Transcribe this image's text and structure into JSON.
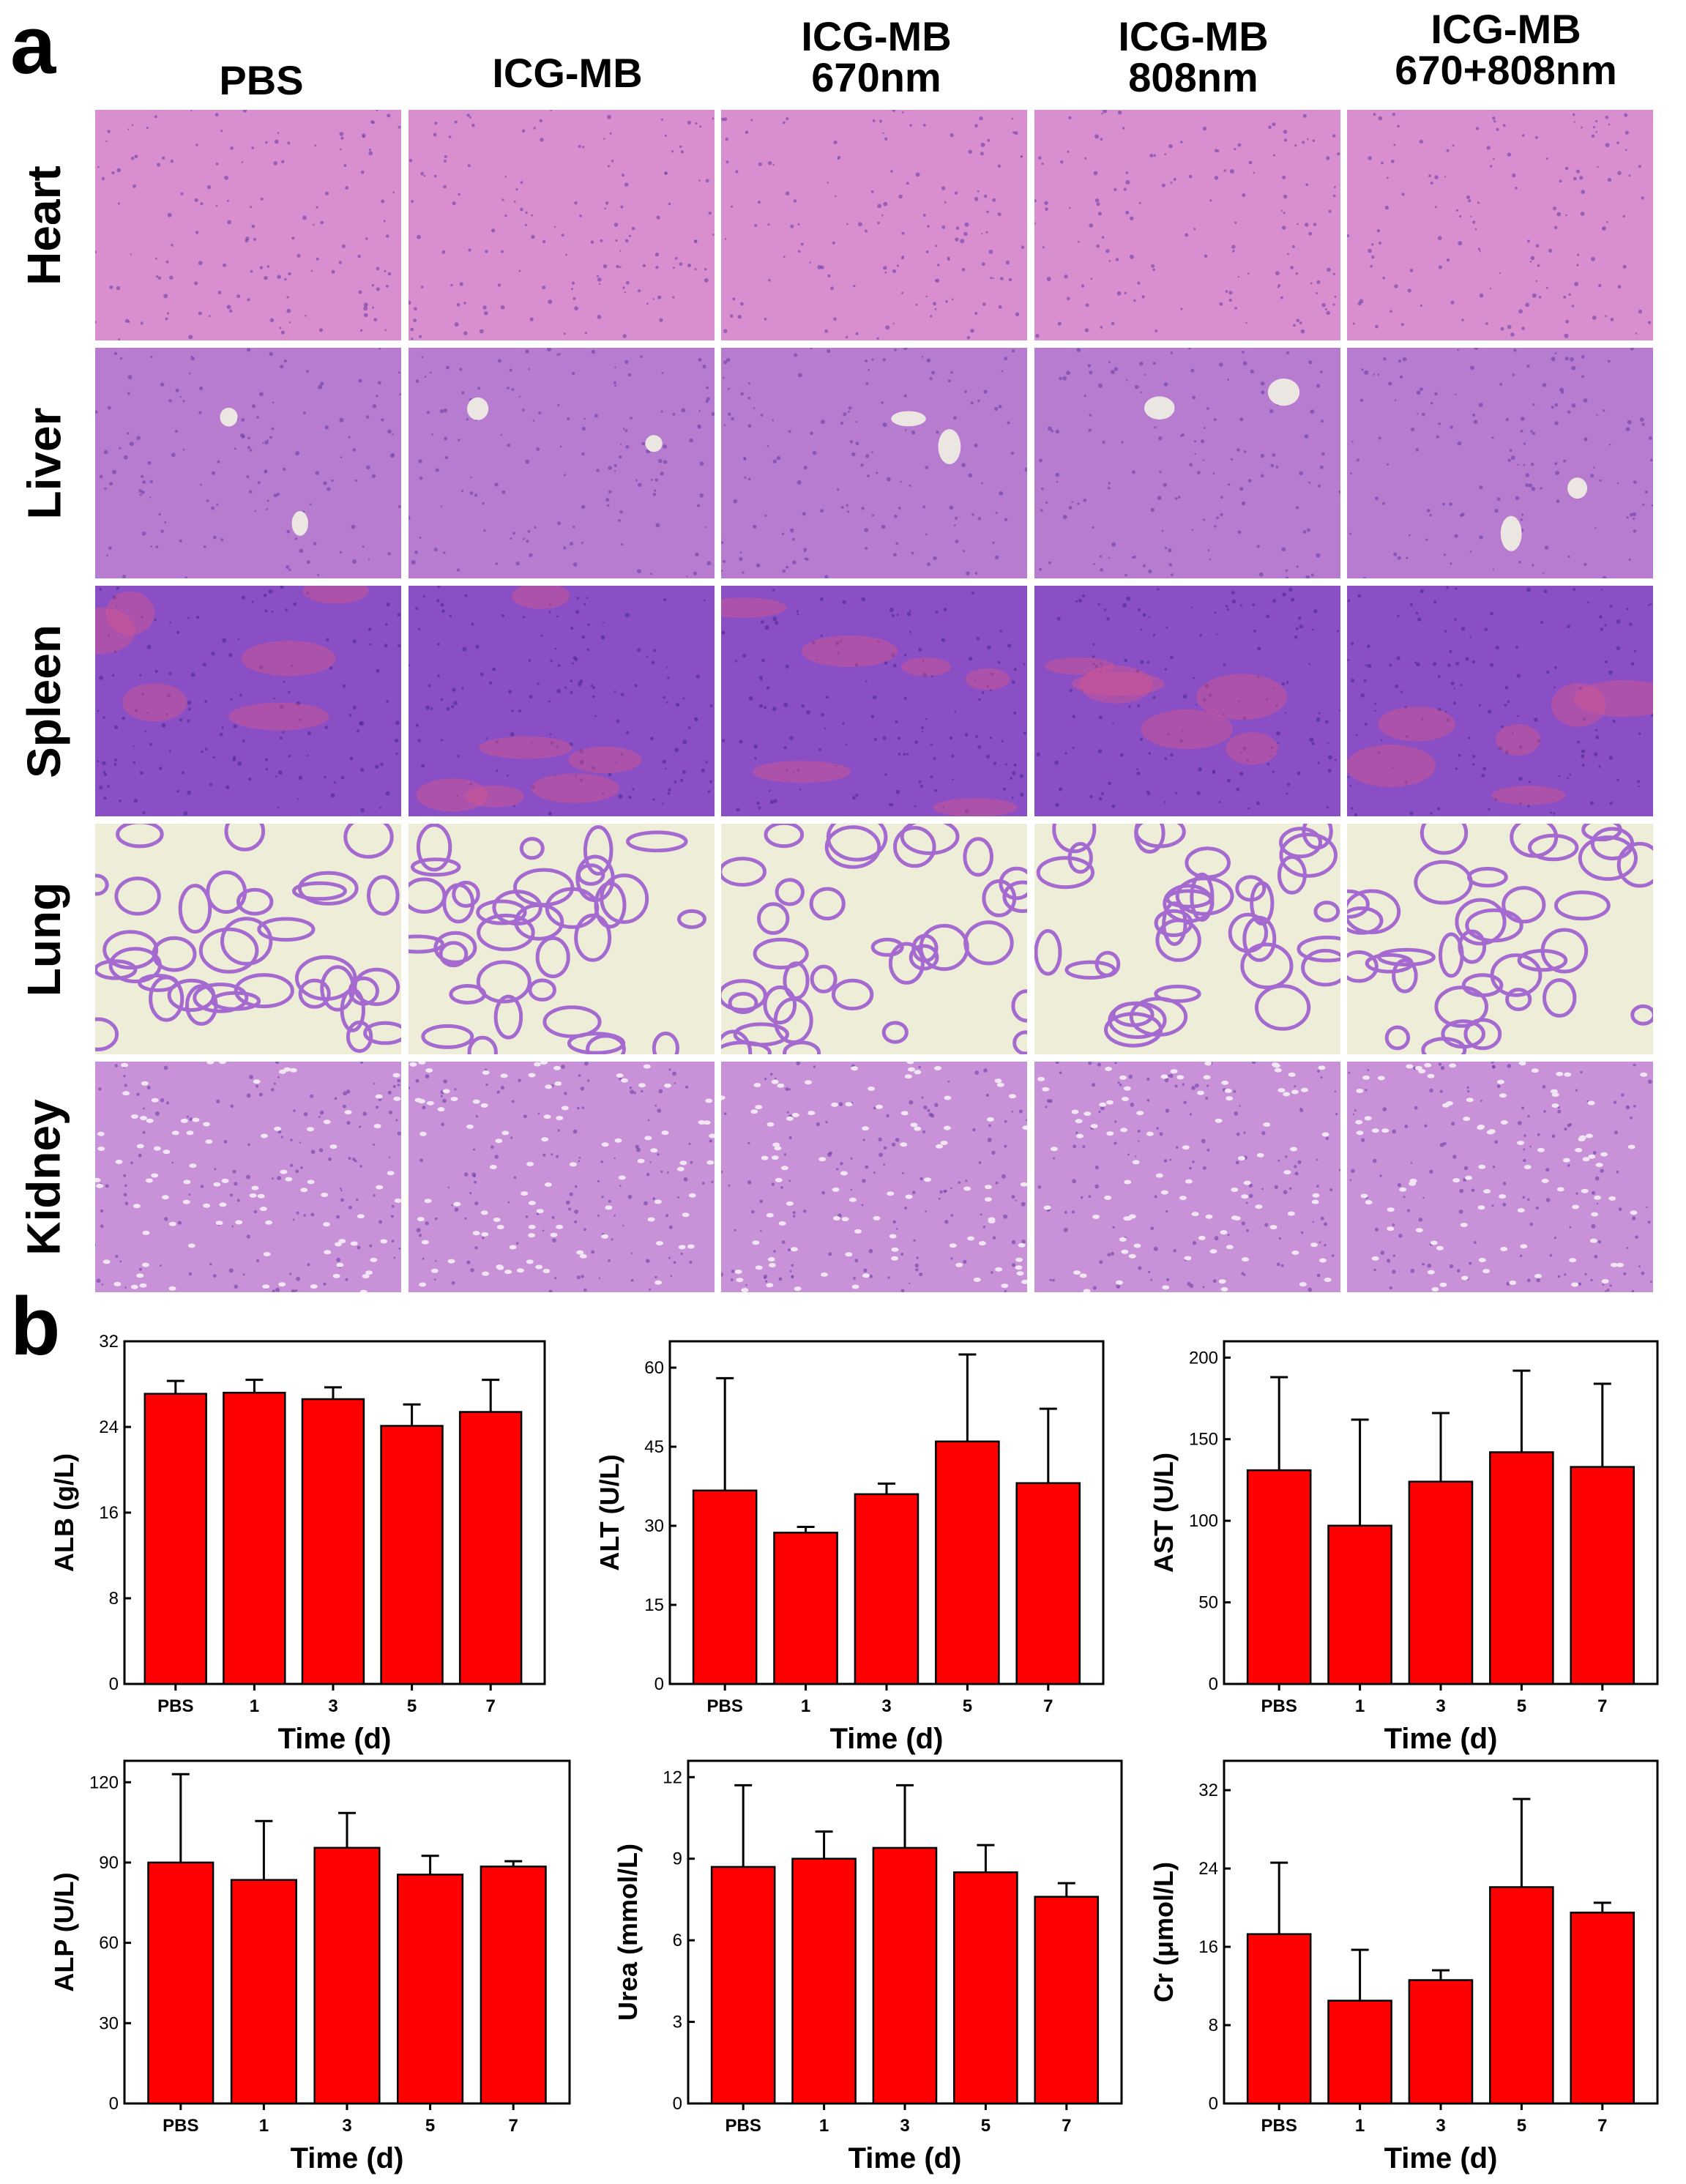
{
  "panels": {
    "a": {
      "letter": "a"
    },
    "b": {
      "letter": "b"
    }
  },
  "histology": {
    "columns": [
      {
        "line1": "PBS",
        "line2": ""
      },
      {
        "line1": "ICG-MB",
        "line2": ""
      },
      {
        "line1": "ICG-MB",
        "line2": "670nm"
      },
      {
        "line1": "ICG-MB",
        "line2": "808nm"
      },
      {
        "line1": "ICG-MB",
        "line2": "670+808nm"
      }
    ],
    "rows": [
      "Heart",
      "Liver",
      "Spleen",
      "Lung",
      "Kidney"
    ],
    "stain_colors": {
      "heart": "#d98fcf",
      "liver": "#b77ccf",
      "spleen": "#8a4fc4",
      "lung": "#eeeed8",
      "kidney": "#c991d8",
      "bar": "#ff0000"
    }
  },
  "chart_data": [
    {
      "type": "bar",
      "categories": [
        "PBS",
        "1",
        "3",
        "5",
        "7"
      ],
      "values": [
        27.1,
        27.2,
        26.6,
        24.1,
        25.4
      ],
      "errors": [
        1.2,
        1.2,
        1.1,
        2.0,
        3.0
      ],
      "xlabel": "Time (d)",
      "ylabel": "ALB (g/L)",
      "ylim": [
        0,
        32
      ],
      "yticks": [
        "0",
        "8",
        "16",
        "24",
        "32"
      ]
    },
    {
      "type": "bar",
      "categories": [
        "PBS",
        "1",
        "3",
        "5",
        "7"
      ],
      "values": [
        36.7,
        28.7,
        36.0,
        46.0,
        38.1
      ],
      "errors": [
        21.3,
        1.1,
        2.0,
        16.5,
        14.1
      ],
      "xlabel": "Time (d)",
      "ylabel": "ALT (U/L)",
      "ylim": [
        0,
        65
      ],
      "yticks": [
        "0",
        "15",
        "30",
        "45",
        "60"
      ]
    },
    {
      "type": "bar",
      "categories": [
        "PBS",
        "1",
        "3",
        "5",
        "7"
      ],
      "values": [
        131,
        97,
        124,
        142,
        133
      ],
      "errors": [
        57,
        65,
        42,
        50,
        51
      ],
      "xlabel": "Time (d)",
      "ylabel": "AST (U/L)",
      "ylim": [
        0,
        210
      ],
      "yticks": [
        "0",
        "50",
        "100",
        "150",
        "200"
      ]
    },
    {
      "type": "bar",
      "categories": [
        "PBS",
        "1",
        "3",
        "5",
        "7"
      ],
      "values": [
        90,
        83.5,
        95.5,
        85.5,
        88.5
      ],
      "errors": [
        33,
        22,
        13,
        7,
        2
      ],
      "xlabel": "Time (d)",
      "ylabel": "ALP (U/L)",
      "ylim": [
        0,
        128
      ],
      "yticks": [
        "0",
        "30",
        "60",
        "90",
        "120"
      ]
    },
    {
      "type": "bar",
      "categories": [
        "PBS",
        "1",
        "3",
        "5",
        "7"
      ],
      "values": [
        8.7,
        9.0,
        9.4,
        8.5,
        7.6
      ],
      "errors": [
        3.0,
        1.0,
        2.3,
        1.0,
        0.5
      ],
      "xlabel": "Time (d)",
      "ylabel": "Urea (mmol/L)",
      "ylim": [
        0,
        12.6
      ],
      "yticks": [
        "0",
        "3",
        "6",
        "9",
        "12"
      ]
    },
    {
      "type": "bar",
      "categories": [
        "PBS",
        "1",
        "3",
        "5",
        "7"
      ],
      "values": [
        17.3,
        10.5,
        12.6,
        22.1,
        19.5
      ],
      "errors": [
        7.3,
        5.2,
        1.0,
        9.0,
        1.0
      ],
      "xlabel": "Time (d)",
      "ylabel": "Cr (μmol/L)",
      "ylim": [
        0,
        35
      ],
      "yticks": [
        "0",
        "8",
        "16",
        "24",
        "32"
      ]
    }
  ]
}
